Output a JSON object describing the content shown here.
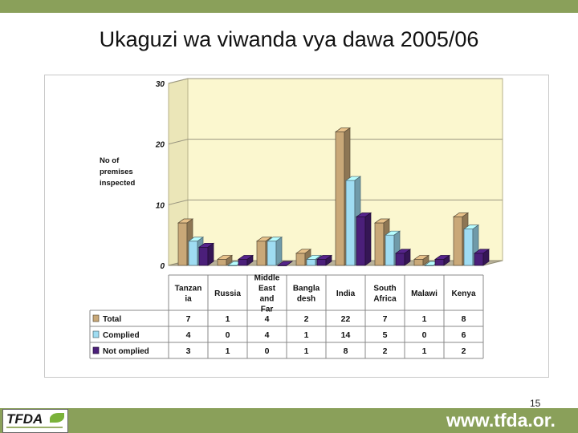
{
  "title": "Ukaguzi wa viwanda vya dawa 2005/06",
  "page_number": "15",
  "footer": {
    "logo_text": "TFDA",
    "website": "www.tfda.or."
  },
  "colors": {
    "band": "#8aa05a",
    "total": "#c9a878",
    "complied": "#9fdcf2",
    "not_complied": "#4b1f7a"
  },
  "chart_data": {
    "type": "bar",
    "ylabel": "No of premises inspected",
    "ylim": [
      0,
      30
    ],
    "yticks": [
      "0",
      "10",
      "20",
      "30"
    ],
    "categories": [
      "Tanzania",
      "Russia",
      "Middle East and Far",
      "Bangladesh",
      "India",
      "South Africa",
      "Malawi",
      "Kenya"
    ],
    "category_label_lines": [
      [
        "Tanzan",
        "ia"
      ],
      [
        "Russia"
      ],
      [
        "Middle",
        "East",
        "and",
        "Far"
      ],
      [
        "Bangla",
        "desh"
      ],
      [
        "India"
      ],
      [
        "South",
        "Africa"
      ],
      [
        "Malawi"
      ],
      [
        "Kenya"
      ]
    ],
    "series": [
      {
        "name": "Total",
        "values": [
          7,
          1,
          4,
          2,
          22,
          7,
          1,
          8
        ]
      },
      {
        "name": "Complied",
        "values": [
          4,
          0,
          4,
          1,
          14,
          5,
          0,
          6
        ]
      },
      {
        "name": "Not omplied",
        "values": [
          3,
          1,
          0,
          1,
          8,
          2,
          1,
          2
        ]
      }
    ],
    "legend_position": "table-below",
    "grid": true,
    "style": "3d-bar-with-data-table"
  }
}
